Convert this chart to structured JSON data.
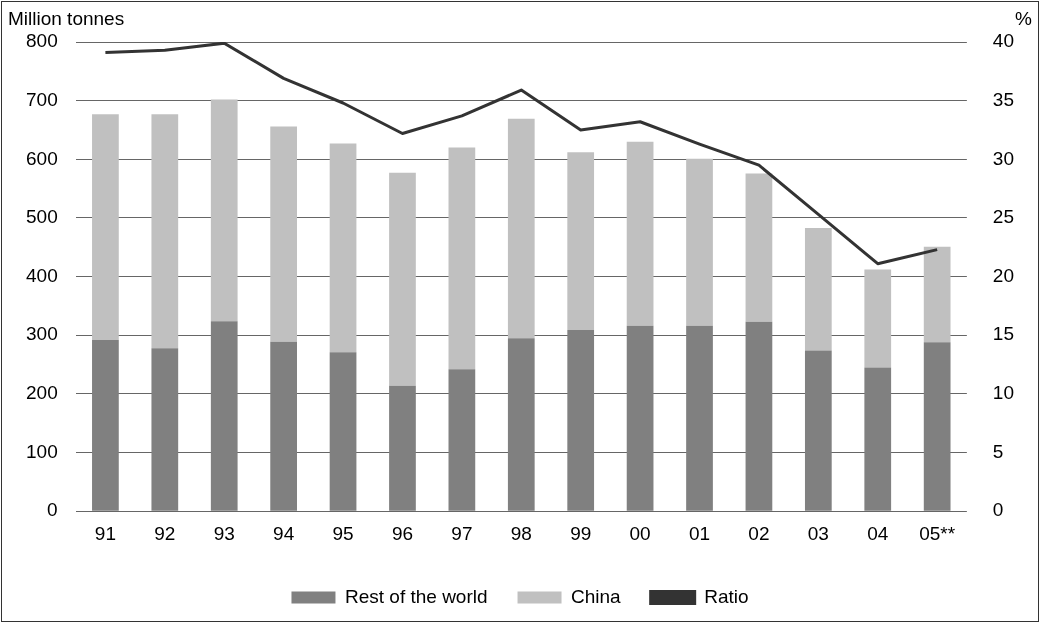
{
  "chart_data": {
    "type": "bar",
    "stacked": true,
    "ylabel": "Million tonnes",
    "y2label": "%",
    "categories": [
      "91",
      "92",
      "93",
      "94",
      "95",
      "96",
      "97",
      "98",
      "99",
      "00",
      "01",
      "02",
      "03",
      "04",
      "05**"
    ],
    "series": [
      {
        "name": "Rest of the world",
        "color": "#808080",
        "values": [
          292,
          278,
          324,
          289,
          271,
          214,
          242,
          295,
          309,
          316,
          316,
          323,
          274,
          245,
          288
        ]
      },
      {
        "name": "China",
        "color": "#c0c0c0",
        "values": [
          385,
          399,
          378,
          367,
          356,
          363,
          378,
          374,
          303,
          314,
          285,
          253,
          209,
          167,
          163
        ]
      },
      {
        "name": "Ratio",
        "type": "line",
        "axis": "y2",
        "color": "#333333",
        "values": [
          39.1,
          39.3,
          39.9,
          36.9,
          34.8,
          32.2,
          33.7,
          35.9,
          32.5,
          33.2,
          31.3,
          29.5,
          25.3,
          21.1,
          22.3
        ]
      }
    ],
    "ylim": [
      0,
      800
    ],
    "yticks": [
      0,
      100,
      200,
      300,
      400,
      500,
      600,
      700,
      800
    ],
    "y2lim": [
      0,
      40
    ],
    "y2ticks": [
      0,
      5,
      10,
      15,
      20,
      25,
      30,
      35,
      40
    ],
    "grid": "y",
    "legend": "bottom"
  }
}
